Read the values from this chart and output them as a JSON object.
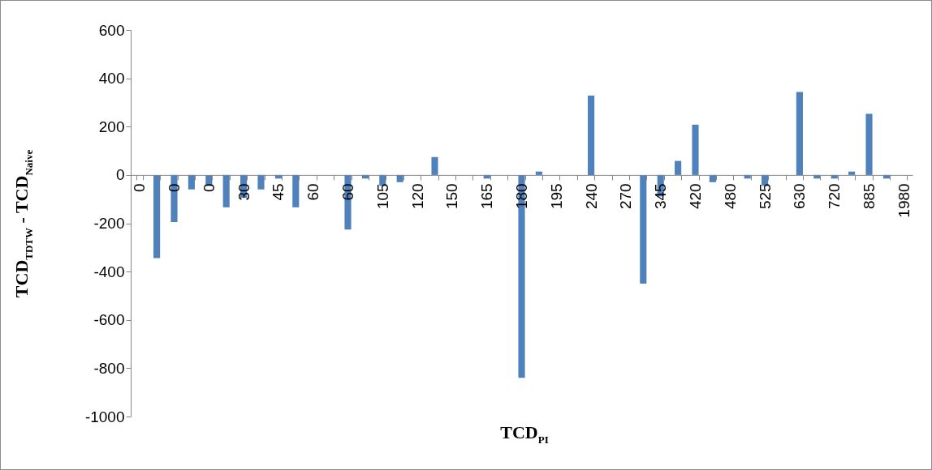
{
  "chart_data": {
    "type": "bar",
    "xlabel": "TCD$_{PI}$",
    "ylabel": "TCD$_{TDTW}$ - TCD$_{Naive}$",
    "categories": [
      "0",
      null,
      "0",
      null,
      "0",
      null,
      "30",
      null,
      "45",
      null,
      "60",
      null,
      "60",
      null,
      "105",
      null,
      "120",
      null,
      "150",
      null,
      "165",
      null,
      "180",
      null,
      "195",
      null,
      "240",
      null,
      "270",
      null,
      "345",
      null,
      "420",
      null,
      "480",
      null,
      "525",
      null,
      "630",
      null,
      "720",
      null,
      "885",
      null,
      "1980"
    ],
    "values": [
      0,
      -344,
      -195,
      -60,
      -45,
      -134,
      -95,
      -60,
      -15,
      -134,
      0,
      0,
      -226,
      -15,
      -45,
      -30,
      0,
      74,
      0,
      0,
      -15,
      0,
      -840,
      14,
      0,
      0,
      328,
      0,
      0,
      -450,
      -89,
      58,
      208,
      -30,
      0,
      -15,
      -45,
      0,
      343,
      -15,
      -15,
      14,
      253,
      -15,
      0
    ],
    "color": "#4f81bd",
    "ylim": [
      -1000,
      600
    ],
    "yticks": [
      -1000,
      -800,
      -600,
      -400,
      -200,
      0,
      200,
      400,
      600
    ],
    "grid": false
  }
}
